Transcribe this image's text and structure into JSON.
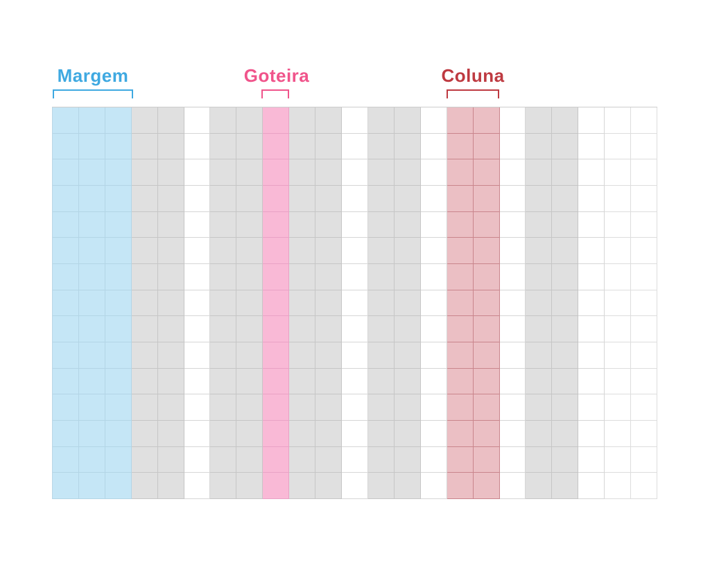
{
  "diagram": {
    "labels": [
      {
        "id": "margem",
        "text": "Margem",
        "meaning": "margin"
      },
      {
        "id": "goteira",
        "text": "Goteira",
        "meaning": "gutter"
      },
      {
        "id": "coluna",
        "text": "Coluna",
        "meaning": "column"
      }
    ],
    "colors": {
      "margem_accent": "#3FA9E1",
      "goteira_accent": "#F0548B",
      "coluna_accent": "#BE3A41",
      "margin_fill": "#C5E6F6",
      "margin_border": "#B3D5E6",
      "column_fill": "#E0E0E0",
      "column_border": "#C6C6C6",
      "gutter_fill": "#FFFFFF",
      "gutter_border": "#D6D6D6",
      "gutter_highlight_fill": "#F9B9D6",
      "gutter_highlight_border": "#E9A2C5",
      "column_highlight_fill": "#EBBFC4",
      "column_highlight_border": "#C9858C",
      "empty_fill": "#FFFFFF",
      "empty_border": "#DDDDDD"
    },
    "grid": {
      "rows": 15,
      "columns": 23,
      "column_types": [
        "margin",
        "margin",
        "margin",
        "column",
        "column",
        "gutter",
        "column",
        "column",
        "gutter_highlight",
        "column",
        "column",
        "gutter",
        "column",
        "column",
        "gutter",
        "column_highlight",
        "column_highlight",
        "gutter",
        "column",
        "column",
        "gutter",
        "empty",
        "empty"
      ]
    }
  }
}
